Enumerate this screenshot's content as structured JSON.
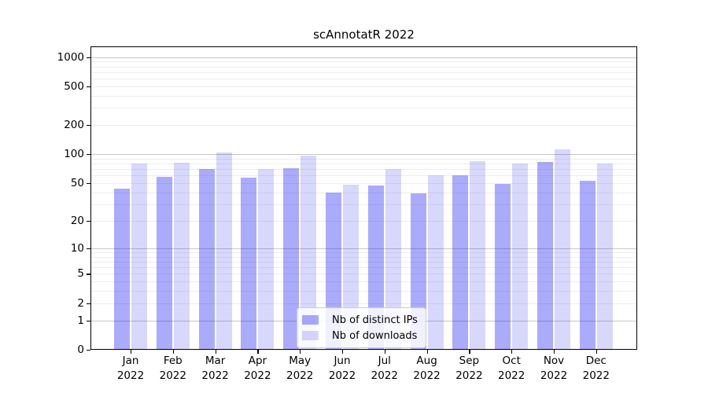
{
  "chart_data": {
    "type": "bar",
    "title": "scAnnotatR 2022",
    "year": "2022",
    "months": [
      "Jan",
      "Feb",
      "Mar",
      "Apr",
      "May",
      "Jun",
      "Jul",
      "Aug",
      "Sep",
      "Oct",
      "Nov",
      "Dec"
    ],
    "categories": [
      "Jan 2022",
      "Feb 2022",
      "Mar 2022",
      "Apr 2022",
      "May 2022",
      "Jun 2022",
      "Jul 2022",
      "Aug 2022",
      "Sep 2022",
      "Oct 2022",
      "Nov 2022",
      "Dec 2022"
    ],
    "series": [
      {
        "name": "Nb of distinct IPs",
        "color": "rgba(10,10,245,0.34)",
        "values": [
          44,
          58,
          70,
          57,
          72,
          40,
          47,
          39,
          60,
          49,
          84,
          53
        ]
      },
      {
        "name": "Nb of downloads",
        "color": "rgba(10,10,245,0.16)",
        "values": [
          80,
          82,
          105,
          70,
          96,
          48,
          71,
          60,
          85,
          80,
          112,
          80
        ]
      }
    ],
    "y_ticks": [
      0,
      1,
      2,
      5,
      10,
      20,
      50,
      100,
      200,
      500,
      1000
    ],
    "ylim": [
      0,
      1305
    ],
    "yscale": "log10(value + 1)",
    "xlabel": "",
    "ylabel": "",
    "grid": "major lines at 1,10,100,1000; minor log lines between",
    "legend_position": "inside-bottom-center",
    "colors": {
      "major_grid": "#c8c8c8",
      "minor_grid": "#ededed",
      "spine": "#000000"
    }
  }
}
